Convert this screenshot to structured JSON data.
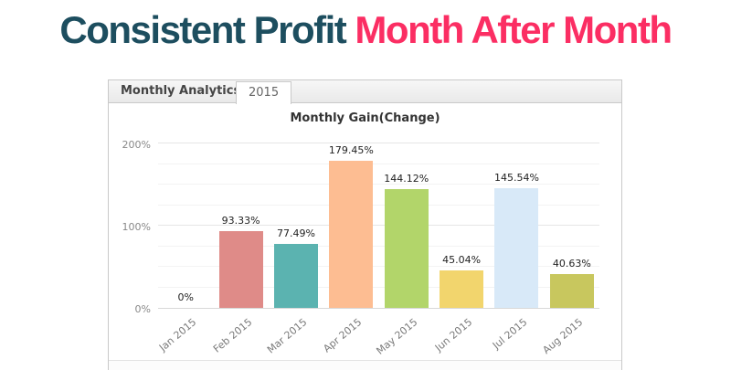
{
  "headline": {
    "part1": "Consistent Profit ",
    "part2": "Month After Month",
    "color_part1": "#1d4e5f",
    "color_part2": "#fb2e63"
  },
  "panel": {
    "header_title": "Monthly Analytics",
    "tab": "2015"
  },
  "chart_data": {
    "type": "bar",
    "title": "Monthly Gain(Change)",
    "categories": [
      "Jan 2015",
      "Feb 2015",
      "Mar 2015",
      "Apr 2015",
      "May 2015",
      "Jun 2015",
      "Jul 2015",
      "Aug 2015"
    ],
    "values": [
      0,
      93.33,
      77.49,
      179.45,
      144.12,
      45.04,
      145.54,
      40.63
    ],
    "value_labels": [
      "0%",
      "93.33%",
      "77.49%",
      "179.45%",
      "144.12%",
      "45.04%",
      "145.54%",
      "40.63%"
    ],
    "bar_colors": [
      "#ffffff",
      "#df8b88",
      "#5bb3b0",
      "#fdbd92",
      "#b2d56a",
      "#f2d56d",
      "#d8e9f8",
      "#c8c75e"
    ],
    "xlabel": "",
    "ylabel": "",
    "ylim": [
      0,
      200
    ],
    "yticks": [
      {
        "label": "0%",
        "value": 0
      },
      {
        "label": "100%",
        "value": 100
      },
      {
        "label": "200%",
        "value": 200
      }
    ],
    "grid": true,
    "grid_step": 25,
    "legend": false
  }
}
